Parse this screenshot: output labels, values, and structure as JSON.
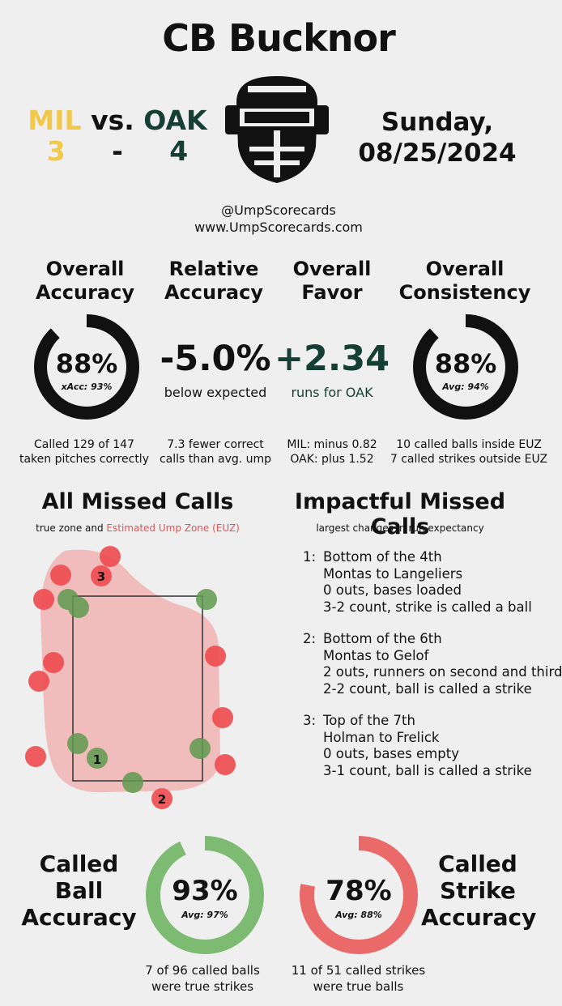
{
  "title": "CB Bucknor",
  "teams": {
    "away_name": "MIL",
    "vs": "vs.",
    "home_name": "OAK",
    "away_score": "3",
    "dash": "-",
    "home_score": "4"
  },
  "date": {
    "line1": "Sunday,",
    "line2": "08/25/2024"
  },
  "credits": {
    "handle": "@UmpScorecards",
    "site": "www.UmpScorecards.com"
  },
  "colors": {
    "mil": "#f2c84b",
    "oak": "#163f33",
    "ball_ring": "#7dbb72",
    "strike_ring": "#ea6a6a",
    "miss_red": "#ee4b50",
    "miss_green": "#5f9b4e"
  },
  "stats": {
    "overall_accuracy": {
      "h1": "Overall",
      "h2": "Accuracy",
      "value": "88%",
      "sub": "xAcc: 93%",
      "fraction": 0.88,
      "desc1": "Called 129 of 147",
      "desc2": "taken pitches correctly"
    },
    "relative_accuracy": {
      "h1": "Relative",
      "h2": "Accuracy",
      "value": "-5.0%",
      "sub": "below expected",
      "desc1": "7.3 fewer correct",
      "desc2": "calls than avg. ump"
    },
    "overall_favor": {
      "h1": "Overall",
      "h2": "Favor",
      "value": "+2.34",
      "sub": "runs for OAK",
      "desc1": "MIL: minus 0.82",
      "desc2": "OAK: plus 1.52"
    },
    "overall_consistency": {
      "h1": "Overall",
      "h2": "Consistency",
      "value": "88%",
      "sub": "Avg: 94%",
      "fraction": 0.88,
      "desc1": "10 called balls inside EUZ",
      "desc2": "7 called strikes outside EUZ"
    }
  },
  "missed_calls": {
    "title": "All Missed Calls",
    "legend_a": "true zone and ",
    "legend_b": "Estimated Ump Zone (EUZ)",
    "labels": [
      "1",
      "2",
      "3"
    ]
  },
  "impactful": {
    "title": "Impactful Missed Calls",
    "subtitle": "largest changes in run expectancy",
    "items": [
      {
        "num": "1:",
        "l1": "Bottom of the 4th",
        "l2": "Montas to Langeliers",
        "l3": "0 outs, bases loaded",
        "l4": "3-2 count, strike is called a ball"
      },
      {
        "num": "2:",
        "l1": "Bottom of the 6th",
        "l2": "Montas to Gelof",
        "l3": "2 outs, runners on second and third",
        "l4": "2-2 count, ball is called a strike"
      },
      {
        "num": "3:",
        "l1": "Top of the 7th",
        "l2": "Holman to Frelick",
        "l3": "0 outs, bases empty",
        "l4": "3-1 count, ball is called a strike"
      }
    ]
  },
  "ball_accuracy": {
    "h1": "Called",
    "h2": "Ball",
    "h3": "Accuracy",
    "value": "93%",
    "sub": "Avg: 97%",
    "fraction": 0.93,
    "desc1": "7 of 96 called balls",
    "desc2": "were true strikes"
  },
  "strike_accuracy": {
    "h1": "Called",
    "h2": "Strike",
    "h3": "Accuracy",
    "value": "78%",
    "sub": "Avg: 88%",
    "fraction": 0.78,
    "desc1": "11 of 51 called strikes",
    "desc2": "were true balls"
  }
}
